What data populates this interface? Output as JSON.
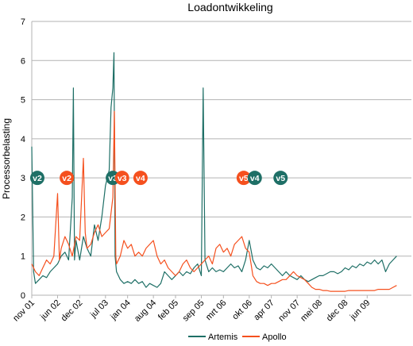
{
  "chart_data": {
    "type": "line",
    "title": "Loadontwikkeling",
    "xlabel": "",
    "ylabel": "Processorbelasting",
    "ylim": [
      0,
      7
    ],
    "yticks": [
      "0",
      "1",
      "2",
      "3",
      "4",
      "5",
      "6",
      "7"
    ],
    "xlim": [
      0,
      103
    ],
    "x_unit": "month index from nov 01",
    "xtick_labels": [
      "nov 01",
      "jun 02",
      "dec 02",
      "jul 03",
      "jan 04",
      "aug 04",
      "feb 05",
      "sep 05",
      "mrt 06",
      "okt 06",
      "apr 07",
      "nov 07",
      "mei 08",
      "dec 08",
      "jun 09"
    ],
    "xtick_positions": [
      0,
      7,
      13,
      20,
      26,
      33,
      39,
      46,
      52,
      59,
      65,
      72,
      78,
      85,
      91
    ],
    "grid": "horizontal",
    "legend_position": "bottom",
    "series": [
      {
        "name": "Artemis",
        "color": "#1e6f66",
        "points": [
          [
            0,
            3.8
          ],
          [
            0.5,
            0.6
          ],
          [
            1,
            0.3
          ],
          [
            2,
            0.4
          ],
          [
            3,
            0.5
          ],
          [
            4,
            0.45
          ],
          [
            5,
            0.6
          ],
          [
            6,
            0.7
          ],
          [
            7,
            0.8
          ],
          [
            8,
            1.0
          ],
          [
            9,
            1.1
          ],
          [
            10,
            0.9
          ],
          [
            11,
            2.5
          ],
          [
            11.3,
            5.3
          ],
          [
            11.6,
            0.9
          ],
          [
            12,
            1.4
          ],
          [
            13,
            0.9
          ],
          [
            14,
            1.5
          ],
          [
            15,
            1.2
          ],
          [
            16,
            1.0
          ],
          [
            17,
            1.8
          ],
          [
            18,
            1.4
          ],
          [
            19,
            2.0
          ],
          [
            20,
            2.8
          ],
          [
            21,
            3.2
          ],
          [
            21.5,
            4.8
          ],
          [
            22,
            5.3
          ],
          [
            22.3,
            6.2
          ],
          [
            22.6,
            1.0
          ],
          [
            23,
            0.6
          ],
          [
            24,
            0.4
          ],
          [
            25,
            0.3
          ],
          [
            26,
            0.35
          ],
          [
            27,
            0.3
          ],
          [
            28,
            0.4
          ],
          [
            29,
            0.3
          ],
          [
            30,
            0.35
          ],
          [
            31,
            0.2
          ],
          [
            32,
            0.3
          ],
          [
            33,
            0.25
          ],
          [
            34,
            0.2
          ],
          [
            35,
            0.3
          ],
          [
            36,
            0.6
          ],
          [
            37,
            0.5
          ],
          [
            38,
            0.4
          ],
          [
            39,
            0.5
          ],
          [
            40,
            0.6
          ],
          [
            41,
            0.5
          ],
          [
            42,
            0.6
          ],
          [
            43,
            0.55
          ],
          [
            44,
            0.7
          ],
          [
            45,
            0.8
          ],
          [
            46,
            0.5
          ],
          [
            46.5,
            5.3
          ],
          [
            47,
            0.9
          ],
          [
            48,
            0.6
          ],
          [
            49,
            0.7
          ],
          [
            50,
            0.6
          ],
          [
            51,
            0.65
          ],
          [
            52,
            0.6
          ],
          [
            53,
            0.7
          ],
          [
            54,
            0.8
          ],
          [
            55,
            0.7
          ],
          [
            56,
            0.75
          ],
          [
            57,
            0.6
          ],
          [
            58,
            0.9
          ],
          [
            59,
            1.4
          ],
          [
            60,
            0.9
          ],
          [
            61,
            0.7
          ],
          [
            62,
            0.65
          ],
          [
            63,
            0.75
          ],
          [
            64,
            0.7
          ],
          [
            65,
            0.8
          ],
          [
            66,
            0.7
          ],
          [
            67,
            0.6
          ],
          [
            68,
            0.5
          ],
          [
            69,
            0.6
          ],
          [
            70,
            0.5
          ],
          [
            71,
            0.45
          ],
          [
            72,
            0.4
          ],
          [
            73,
            0.5
          ],
          [
            74,
            0.4
          ],
          [
            75,
            0.35
          ],
          [
            76,
            0.4
          ],
          [
            77,
            0.45
          ],
          [
            78,
            0.5
          ],
          [
            79,
            0.5
          ],
          [
            80,
            0.55
          ],
          [
            81,
            0.6
          ],
          [
            82,
            0.6
          ],
          [
            83,
            0.55
          ],
          [
            84,
            0.6
          ],
          [
            85,
            0.7
          ],
          [
            86,
            0.65
          ],
          [
            87,
            0.75
          ],
          [
            88,
            0.7
          ],
          [
            89,
            0.8
          ],
          [
            90,
            0.75
          ],
          [
            91,
            0.85
          ],
          [
            92,
            0.8
          ],
          [
            93,
            0.9
          ],
          [
            94,
            0.8
          ],
          [
            95,
            0.9
          ],
          [
            96,
            0.6
          ],
          [
            97,
            0.8
          ],
          [
            98,
            0.9
          ],
          [
            99,
            1.0
          ]
        ]
      },
      {
        "name": "Apollo",
        "color": "#f5501e",
        "points": [
          [
            0,
            0.8
          ],
          [
            1,
            0.6
          ],
          [
            2,
            0.5
          ],
          [
            3,
            0.7
          ],
          [
            4,
            0.9
          ],
          [
            5,
            0.8
          ],
          [
            6,
            1.0
          ],
          [
            7,
            2.6
          ],
          [
            7.5,
            0.9
          ],
          [
            8,
            1.2
          ],
          [
            9,
            1.5
          ],
          [
            10,
            1.3
          ],
          [
            11,
            1.0
          ],
          [
            12,
            1.5
          ],
          [
            13,
            1.4
          ],
          [
            14,
            3.5
          ],
          [
            14.5,
            1.6
          ],
          [
            15,
            1.2
          ],
          [
            16,
            1.3
          ],
          [
            17,
            1.6
          ],
          [
            18,
            1.8
          ],
          [
            19,
            1.5
          ],
          [
            20,
            1.6
          ],
          [
            21,
            1.7
          ],
          [
            22,
            2.5
          ],
          [
            22.4,
            4.7
          ],
          [
            22.8,
            1.0
          ],
          [
            23,
            0.8
          ],
          [
            24,
            1.0
          ],
          [
            25,
            1.4
          ],
          [
            26,
            1.2
          ],
          [
            27,
            1.3
          ],
          [
            28,
            1.0
          ],
          [
            29,
            1.1
          ],
          [
            30,
            1.0
          ],
          [
            31,
            1.2
          ],
          [
            32,
            1.3
          ],
          [
            33,
            1.4
          ],
          [
            34,
            1.0
          ],
          [
            35,
            0.8
          ],
          [
            36,
            0.9
          ],
          [
            37,
            0.7
          ],
          [
            38,
            0.6
          ],
          [
            39,
            0.5
          ],
          [
            40,
            0.6
          ],
          [
            41,
            0.8
          ],
          [
            42,
            0.9
          ],
          [
            43,
            0.7
          ],
          [
            44,
            0.6
          ],
          [
            45,
            0.7
          ],
          [
            46,
            0.8
          ],
          [
            47,
            0.9
          ],
          [
            48,
            1.0
          ],
          [
            49,
            0.8
          ],
          [
            50,
            1.2
          ],
          [
            51,
            1.3
          ],
          [
            52,
            1.1
          ],
          [
            53,
            1.2
          ],
          [
            54,
            1.0
          ],
          [
            55,
            1.3
          ],
          [
            56,
            1.4
          ],
          [
            57,
            1.5
          ],
          [
            58,
            1.2
          ],
          [
            59,
            1.1
          ],
          [
            60,
            0.5
          ],
          [
            61,
            0.35
          ],
          [
            62,
            0.3
          ],
          [
            63,
            0.3
          ],
          [
            64,
            0.25
          ],
          [
            65,
            0.3
          ],
          [
            66,
            0.3
          ],
          [
            67,
            0.35
          ],
          [
            68,
            0.4
          ],
          [
            69,
            0.4
          ],
          [
            70,
            0.5
          ],
          [
            71,
            0.6
          ],
          [
            72,
            0.5
          ],
          [
            73,
            0.45
          ],
          [
            74,
            0.4
          ],
          [
            75,
            0.3
          ],
          [
            76,
            0.2
          ],
          [
            77,
            0.15
          ],
          [
            78,
            0.15
          ],
          [
            79,
            0.12
          ],
          [
            80,
            0.12
          ],
          [
            81,
            0.1
          ],
          [
            82,
            0.1
          ],
          [
            83,
            0.1
          ],
          [
            84,
            0.1
          ],
          [
            85,
            0.1
          ],
          [
            86,
            0.12
          ],
          [
            87,
            0.12
          ],
          [
            88,
            0.12
          ],
          [
            89,
            0.12
          ],
          [
            90,
            0.12
          ],
          [
            91,
            0.12
          ],
          [
            92,
            0.12
          ],
          [
            93,
            0.12
          ],
          [
            94,
            0.15
          ],
          [
            95,
            0.15
          ],
          [
            96,
            0.15
          ],
          [
            97,
            0.15
          ],
          [
            98,
            0.2
          ],
          [
            99,
            0.25
          ]
        ]
      }
    ],
    "annotations": [
      {
        "label": "v2",
        "x": 1.5,
        "y": 3.0,
        "series": "Artemis"
      },
      {
        "label": "v2",
        "x": 9.5,
        "y": 3.0,
        "series": "Apollo"
      },
      {
        "label": "v3",
        "x": 22.0,
        "y": 3.0,
        "series": "Artemis"
      },
      {
        "label": "v3",
        "x": 24.5,
        "y": 3.0,
        "series": "Apollo"
      },
      {
        "label": "v4",
        "x": 29.5,
        "y": 3.0,
        "series": "Apollo"
      },
      {
        "label": "v5",
        "x": 57.5,
        "y": 3.0,
        "series": "Apollo"
      },
      {
        "label": "v4",
        "x": 60.5,
        "y": 3.0,
        "series": "Artemis"
      },
      {
        "label": "v5",
        "x": 67.5,
        "y": 3.0,
        "series": "Artemis"
      }
    ]
  }
}
